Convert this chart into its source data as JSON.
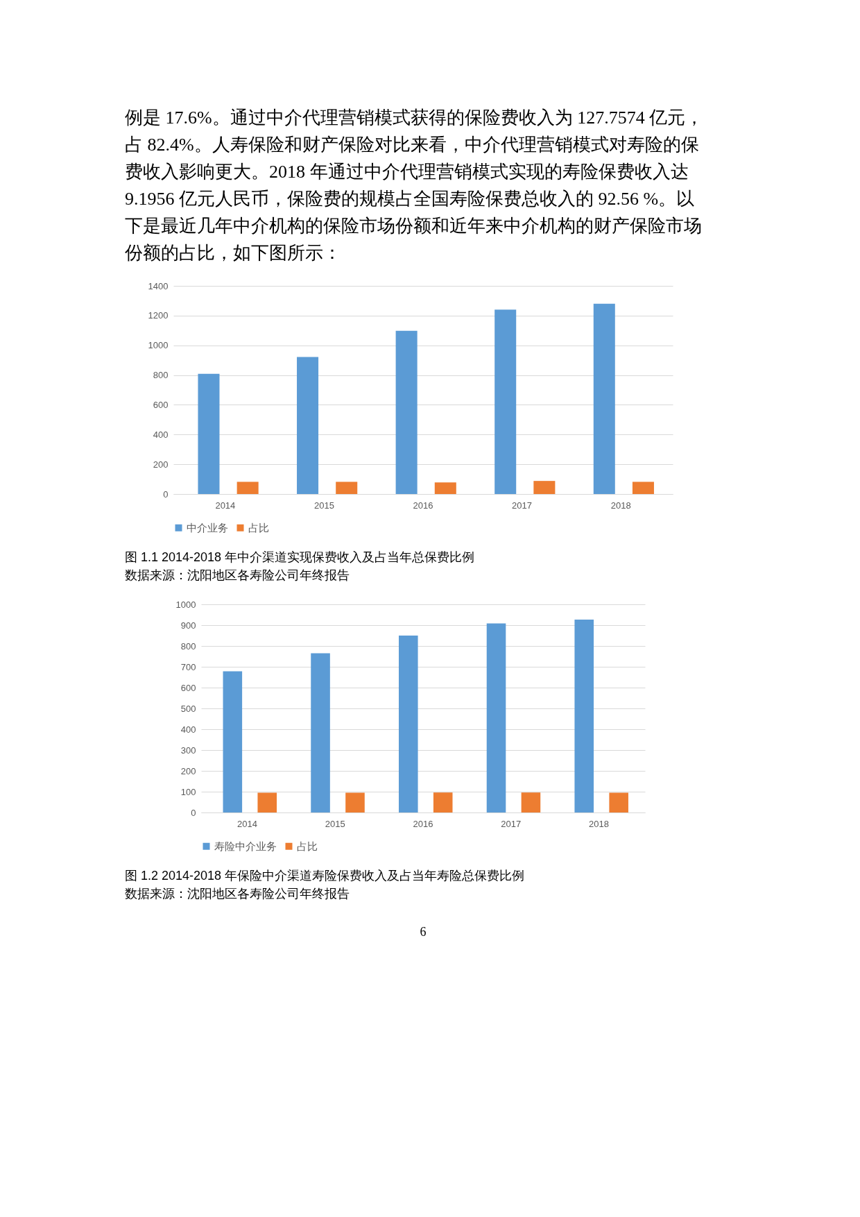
{
  "chart_data": [
    {
      "type": "bar",
      "categories": [
        "2014",
        "2015",
        "2016",
        "2017",
        "2018"
      ],
      "series": [
        {
          "name": "中介业务",
          "color": "#5b9bd5",
          "values": [
            808,
            922,
            1098,
            1240,
            1280
          ]
        },
        {
          "name": "占比",
          "color": "#ed7d31",
          "values": [
            82,
            82,
            78,
            88,
            82
          ]
        }
      ],
      "ylim": [
        0,
        1400
      ],
      "yticks": [
        0,
        200,
        400,
        600,
        800,
        1000,
        1200,
        1400
      ],
      "grid": "y",
      "legend": "bottom",
      "annotations": [
        "例是 17.6%。通过中介代理营销模式获得的保险费收入为 127.7574 亿元，",
        "占 82.4%。人寿保险和财产保险对比来看，中介代理营销模式对寿险的保",
        "费收入影响更大。2018 年通过中介代理营销模式实现的寿险保费收入达",
        "9.1956 亿元人民币，保险费的规模占全国寿险保费总收入的 92.56 %。以",
        "下是最近几年中介机构的保险市场份额和近年来中介机构的财产保险市场",
        "份额的占比，如下图所示：",
        "图 1.1  2014-2018 年中介渠道实现保费收入及占当年总保费比例",
        "数据来源：沈阳地区各寿险公司年终报告"
      ]
    },
    {
      "type": "bar",
      "categories": [
        "2014",
        "2015",
        "2016",
        "2017",
        "2018"
      ],
      "series": [
        {
          "name": "寿险中介业务",
          "color": "#5b9bd5",
          "values": [
            678,
            765,
            850,
            908,
            927
          ]
        },
        {
          "name": "占比",
          "color": "#ed7d31",
          "values": [
            95,
            95,
            96,
            96,
            95
          ]
        }
      ],
      "ylim": [
        0,
        1000
      ],
      "yticks": [
        0,
        100,
        200,
        300,
        400,
        500,
        600,
        700,
        800,
        900,
        1000
      ],
      "grid": "y",
      "legend": "bottom",
      "annotations": [
        "图 1.2  2014-2018 年保险中介渠道寿险保费收入及占当年寿险总保费比例",
        "数据来源：沈阳地区各寿险公司年终报告",
        "6"
      ]
    }
  ]
}
